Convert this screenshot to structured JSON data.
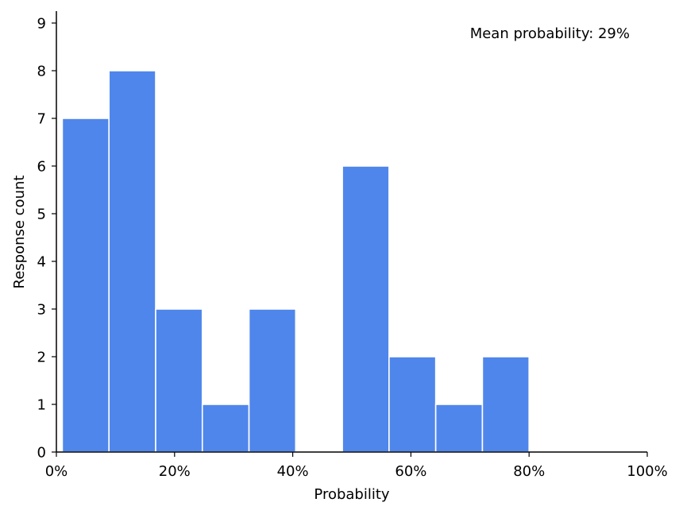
{
  "chart_data": {
    "type": "histogram",
    "xlabel": "Probability",
    "ylabel": "Response count",
    "annotation": "Mean probability: 29%",
    "xlim": [
      0,
      100
    ],
    "ylim": [
      0,
      9.25
    ],
    "x_ticks": [
      0,
      20,
      40,
      60,
      80,
      100
    ],
    "x_tick_labels": [
      "0%",
      "20%",
      "40%",
      "60%",
      "80%",
      "100%"
    ],
    "y_ticks": [
      0,
      1,
      2,
      3,
      4,
      5,
      6,
      7,
      8,
      9
    ],
    "y_tick_labels": [
      "0",
      "1",
      "2",
      "3",
      "4",
      "5",
      "6",
      "7",
      "8",
      "9"
    ],
    "bins": [
      {
        "start": 1,
        "end": 8.9,
        "count": 7
      },
      {
        "start": 8.9,
        "end": 16.8,
        "count": 8
      },
      {
        "start": 16.8,
        "end": 24.7,
        "count": 3
      },
      {
        "start": 24.7,
        "end": 32.6,
        "count": 1
      },
      {
        "start": 32.6,
        "end": 40.5,
        "count": 3
      },
      {
        "start": 40.5,
        "end": 48.4,
        "count": 0
      },
      {
        "start": 48.4,
        "end": 56.3,
        "count": 6
      },
      {
        "start": 56.3,
        "end": 64.2,
        "count": 2
      },
      {
        "start": 64.2,
        "end": 72.1,
        "count": 1
      },
      {
        "start": 72.1,
        "end": 80.0,
        "count": 2
      }
    ],
    "bar_color": "#4f86ec",
    "grid": false,
    "spines": [
      "left",
      "bottom"
    ]
  }
}
